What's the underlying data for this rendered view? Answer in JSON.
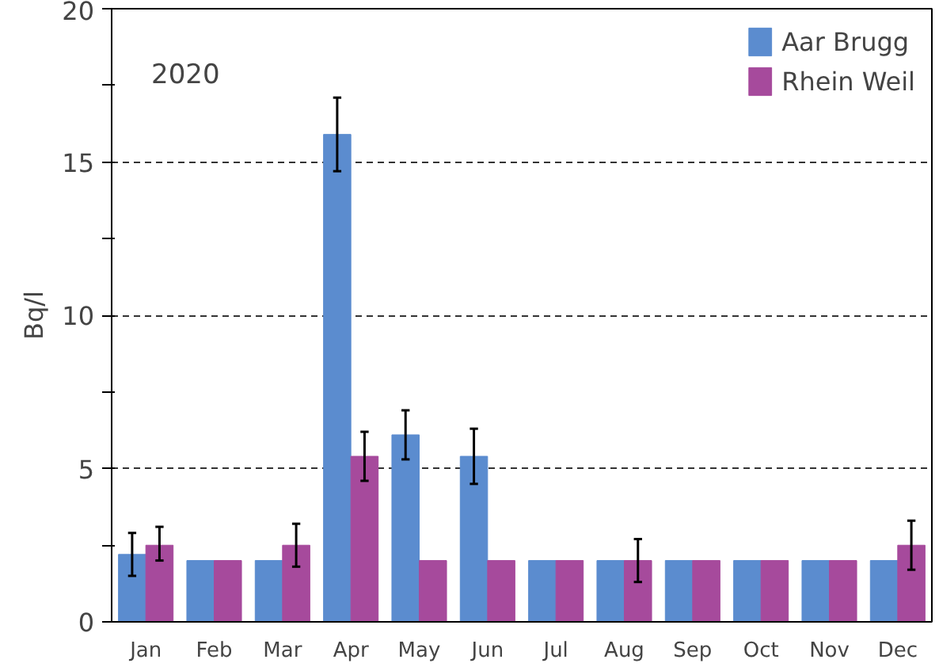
{
  "chart_data": {
    "type": "bar",
    "ylabel": "Bq/l",
    "annotations": [
      "2020"
    ],
    "categories": [
      "Jan",
      "Feb",
      "Mar",
      "Apr",
      "May",
      "Jun",
      "Jul",
      "Aug",
      "Sep",
      "Oct",
      "Nov",
      "Dec"
    ],
    "series": [
      {
        "name": "Aar Brugg",
        "color": "#5b8ccf",
        "values": [
          2.2,
          2,
          2,
          15.9,
          6.1,
          5.4,
          2,
          2,
          2,
          2,
          2,
          2
        ],
        "errors": [
          [
            1.5,
            2.9
          ],
          null,
          null,
          [
            14.7,
            17.1
          ],
          [
            5.3,
            6.9
          ],
          [
            4.5,
            6.3
          ],
          null,
          null,
          null,
          null,
          null,
          null
        ]
      },
      {
        "name": "Rhein Weil",
        "color": "#a64a9c",
        "values": [
          2.5,
          2,
          2.5,
          5.4,
          2,
          2,
          2,
          2,
          2,
          2,
          2,
          2.5
        ],
        "errors": [
          [
            2.0,
            3.1
          ],
          null,
          [
            1.8,
            3.2
          ],
          [
            4.6,
            6.2
          ],
          null,
          null,
          null,
          [
            1.3,
            2.7
          ],
          null,
          null,
          null,
          [
            1.7,
            3.3
          ]
        ]
      }
    ],
    "ylim": [
      0,
      20
    ],
    "yticks": [
      0,
      {
        "value": 2.5,
        "label": null
      },
      5,
      {
        "value": 7.5,
        "label": null
      },
      10,
      {
        "value": 12.5,
        "label": null
      },
      15,
      {
        "value": 17.5,
        "label": null
      },
      20
    ],
    "grid": "y",
    "legend": "top right"
  }
}
